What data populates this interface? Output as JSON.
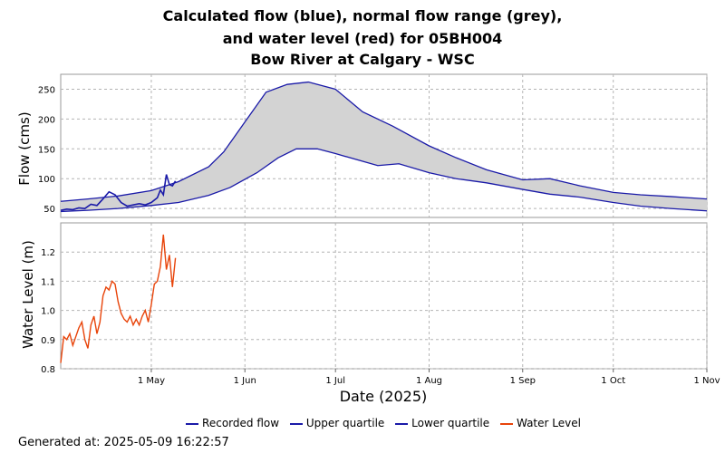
{
  "title_lines": [
    "Calculated flow (blue), normal flow range (grey),",
    "and water level (red) for 05BH004",
    "Bow River at Calgary - WSC"
  ],
  "xlabel": "Date (2025)",
  "footer": "Generated at: 2025-05-09 16:22:57",
  "colors": {
    "recorded_flow": "#1a1aa8",
    "quartile": "#1a1aa8",
    "range_fill": "#d3d3d3",
    "water_level": "#e8440a",
    "grid": "#b4b4b4",
    "plot_bg": "#ffffff",
    "frame": "#999999"
  },
  "legend": [
    {
      "label": "Recorded flow",
      "color": "#1a1aa8"
    },
    {
      "label": "Upper quartile",
      "color": "#1a1aa8"
    },
    {
      "label": "Lower quartile",
      "color": "#1a1aa8"
    },
    {
      "label": "Water Level",
      "color": "#e8440a"
    }
  ],
  "chart_data": [
    {
      "type": "area",
      "ylabel": "Flow (cms)",
      "ylim": [
        35,
        275
      ],
      "yticks": [
        50,
        100,
        150,
        200,
        250
      ],
      "xlim": [
        "2025-04-01",
        "2025-11-01"
      ],
      "xticks": [
        {
          "date": "2025-05-01",
          "label": "1 May"
        },
        {
          "date": "2025-06-01",
          "label": "1 Jun"
        },
        {
          "date": "2025-07-01",
          "label": "1 Jul"
        },
        {
          "date": "2025-08-01",
          "label": "1 Aug"
        },
        {
          "date": "2025-09-01",
          "label": "1 Sep"
        },
        {
          "date": "2025-10-01",
          "label": "1 Oct"
        },
        {
          "date": "2025-11-01",
          "label": "1 Nov"
        }
      ],
      "grid": true,
      "series": [
        {
          "name": "Upper quartile",
          "x": [
            "2025-04-01",
            "2025-04-10",
            "2025-04-20",
            "2025-05-01",
            "2025-05-10",
            "2025-05-20",
            "2025-05-25",
            "2025-06-01",
            "2025-06-08",
            "2025-06-15",
            "2025-06-22",
            "2025-07-01",
            "2025-07-10",
            "2025-07-20",
            "2025-08-01",
            "2025-08-10",
            "2025-08-20",
            "2025-09-01",
            "2025-09-10",
            "2025-09-20",
            "2025-10-01",
            "2025-10-10",
            "2025-10-20",
            "2025-11-01"
          ],
          "y": [
            62,
            66,
            71,
            80,
            95,
            120,
            145,
            195,
            245,
            258,
            262,
            250,
            212,
            188,
            155,
            135,
            115,
            98,
            100,
            88,
            77,
            73,
            70,
            66
          ]
        },
        {
          "name": "Lower quartile",
          "x": [
            "2025-04-01",
            "2025-04-10",
            "2025-04-20",
            "2025-05-01",
            "2025-05-10",
            "2025-05-20",
            "2025-05-27",
            "2025-06-05",
            "2025-06-12",
            "2025-06-18",
            "2025-06-25",
            "2025-07-01",
            "2025-07-08",
            "2025-07-15",
            "2025-07-22",
            "2025-08-01",
            "2025-08-10",
            "2025-08-20",
            "2025-09-01",
            "2025-09-10",
            "2025-09-20",
            "2025-10-01",
            "2025-10-10",
            "2025-10-20",
            "2025-11-01"
          ],
          "y": [
            45,
            47,
            50,
            55,
            60,
            72,
            85,
            110,
            135,
            150,
            150,
            142,
            132,
            122,
            125,
            110,
            100,
            93,
            82,
            74,
            69,
            60,
            54,
            50,
            46
          ]
        },
        {
          "name": "Recorded flow",
          "x": [
            "2025-04-01",
            "2025-04-03",
            "2025-04-05",
            "2025-04-07",
            "2025-04-09",
            "2025-04-11",
            "2025-04-13",
            "2025-04-15",
            "2025-04-17",
            "2025-04-19",
            "2025-04-21",
            "2025-04-23",
            "2025-04-25",
            "2025-04-27",
            "2025-04-29",
            "2025-05-01",
            "2025-05-03",
            "2025-05-04",
            "2025-05-05",
            "2025-05-06",
            "2025-05-07",
            "2025-05-08",
            "2025-05-09"
          ],
          "y": [
            47,
            49,
            48,
            51,
            50,
            57,
            55,
            66,
            78,
            73,
            60,
            54,
            56,
            58,
            56,
            60,
            68,
            81,
            73,
            107,
            90,
            88,
            96
          ]
        }
      ]
    },
    {
      "type": "line",
      "ylabel": "Water Level (m)",
      "ylim": [
        0.8,
        1.3
      ],
      "yticks": [
        0.8,
        0.9,
        1.0,
        1.1,
        1.2
      ],
      "xlim": [
        "2025-04-01",
        "2025-11-01"
      ],
      "grid": true,
      "series": [
        {
          "name": "Water Level",
          "x": [
            "2025-04-01",
            "2025-04-02",
            "2025-04-03",
            "2025-04-04",
            "2025-04-05",
            "2025-04-06",
            "2025-04-07",
            "2025-04-08",
            "2025-04-09",
            "2025-04-10",
            "2025-04-11",
            "2025-04-12",
            "2025-04-13",
            "2025-04-14",
            "2025-04-15",
            "2025-04-16",
            "2025-04-17",
            "2025-04-18",
            "2025-04-19",
            "2025-04-20",
            "2025-04-21",
            "2025-04-22",
            "2025-04-23",
            "2025-04-24",
            "2025-04-25",
            "2025-04-26",
            "2025-04-27",
            "2025-04-28",
            "2025-04-29",
            "2025-04-30",
            "2025-05-01",
            "2025-05-02",
            "2025-05-03",
            "2025-05-04",
            "2025-05-05",
            "2025-05-06",
            "2025-05-07",
            "2025-05-08",
            "2025-05-09"
          ],
          "y": [
            0.82,
            0.91,
            0.9,
            0.92,
            0.88,
            0.91,
            0.94,
            0.96,
            0.9,
            0.87,
            0.95,
            0.98,
            0.92,
            0.96,
            1.05,
            1.08,
            1.07,
            1.1,
            1.09,
            1.03,
            0.99,
            0.97,
            0.96,
            0.98,
            0.95,
            0.97,
            0.95,
            0.98,
            1.0,
            0.96,
            1.02,
            1.09,
            1.1,
            1.15,
            1.26,
            1.14,
            1.19,
            1.08,
            1.18
          ]
        }
      ]
    }
  ]
}
